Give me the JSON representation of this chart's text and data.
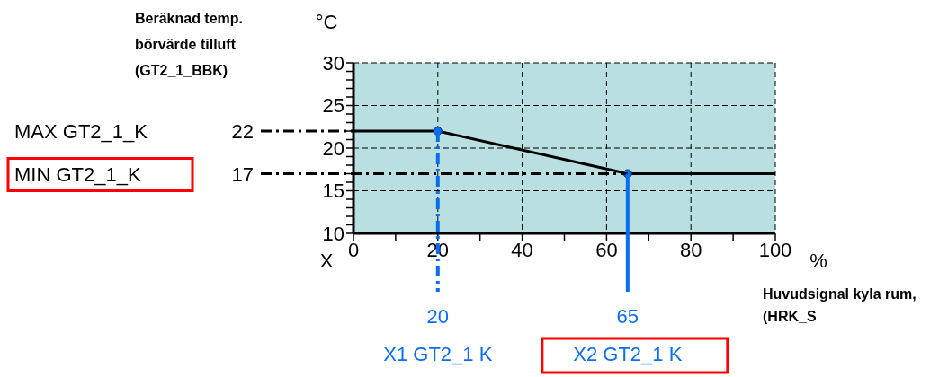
{
  "chart_data": {
    "type": "line",
    "xlabel": "Huvudsignal kyla rum, (HRK_S",
    "xlim": [
      0,
      100
    ],
    "xticks": [
      0,
      {
        "value": 10,
        "label": null
      },
      20,
      {
        "value": 30,
        "label": null
      },
      40,
      {
        "value": 50,
        "label": null
      },
      60,
      {
        "value": 70,
        "label": null
      },
      80,
      {
        "value": 90,
        "label": null
      },
      100
    ],
    "ylim": [
      10,
      30
    ],
    "yticks": [
      10,
      {
        "value": 11,
        "label": null
      },
      {
        "value": 12,
        "label": null
      },
      {
        "value": 13,
        "label": null
      },
      {
        "value": 14,
        "label": null
      },
      15,
      {
        "value": 16,
        "label": null
      },
      {
        "value": 17,
        "label": null
      },
      {
        "value": 18,
        "label": null
      },
      {
        "value": 19,
        "label": null
      },
      20,
      {
        "value": 21,
        "label": null
      },
      {
        "value": 22,
        "label": null
      },
      {
        "value": 23,
        "label": null
      },
      {
        "value": 24,
        "label": null
      },
      25,
      {
        "value": 26,
        "label": null
      },
      {
        "value": 27,
        "label": null
      },
      {
        "value": 28,
        "label": null
      },
      {
        "value": 29,
        "label": null
      },
      30
    ],
    "grid": true,
    "series": [
      {
        "type": "line",
        "color": "#000000",
        "x": [
          0,
          20,
          65,
          100
        ],
        "values": [
          22,
          22,
          17,
          17
        ],
        "marker": "none",
        "line_style": "solid"
      },
      {
        "type": "scatter",
        "color": "#0a6ef5",
        "x": [
          20,
          65
        ],
        "values": [
          22,
          17
        ],
        "marker": "circle"
      }
    ],
    "ref_lines": [
      {
        "axis": "y",
        "value": 22,
        "label": "22",
        "color": "#000000",
        "line_style": "dashed"
      },
      {
        "axis": "y",
        "value": 17,
        "label": "17",
        "color": "#000000",
        "line_style": "dashed"
      },
      {
        "axis": "x",
        "value": 20,
        "label": "20",
        "color": "#0a6ef5",
        "line_style": "dashed"
      },
      {
        "axis": "x",
        "value": 65,
        "label": "65",
        "color": "#0a6ef5",
        "line_style": "solid"
      }
    ],
    "annotations": [
      "Beräknad temp. börvärde tilluft (GT2_1_BBK)",
      "°C",
      "X",
      "%",
      "MAX GT2_1_K",
      "MIN GT2_1_K",
      "X1 GT2_1 K",
      "X2 GT2_1 K"
    ]
  }
}
